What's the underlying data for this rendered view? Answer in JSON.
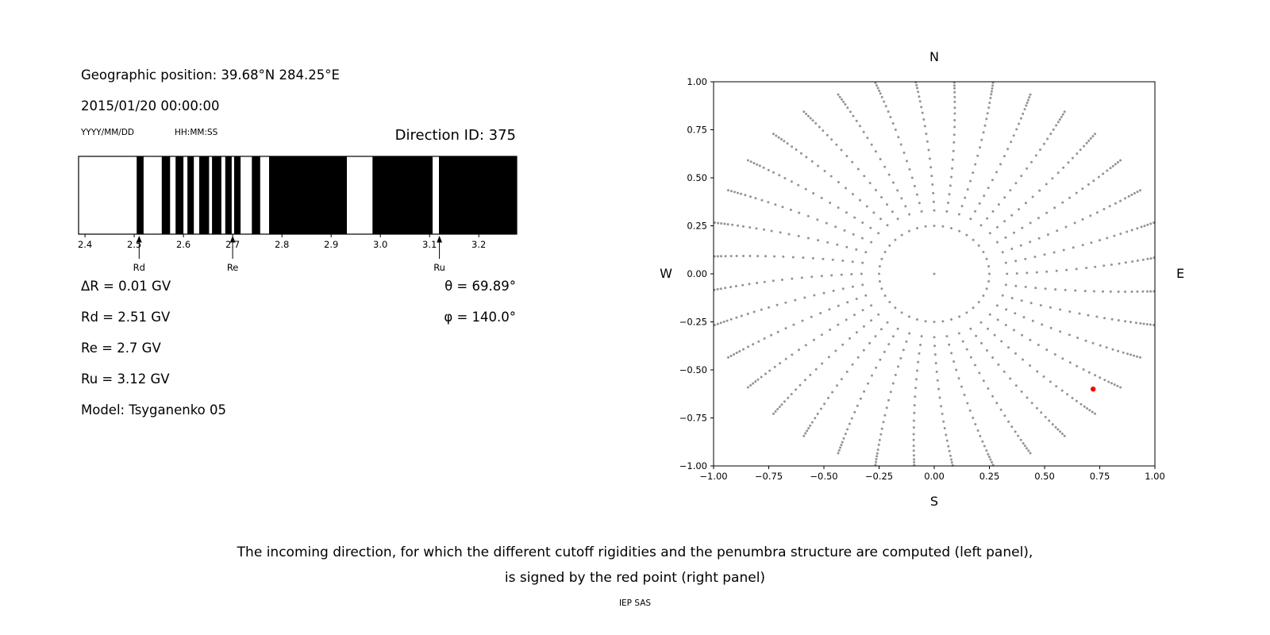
{
  "page": {
    "background": "#ffffff",
    "caption_line1": "The incoming direction, for which the different cutoff rigidities and the penumbra structure are computed (left panel),",
    "caption_line2": "is signed by the red point (right panel)",
    "credit": "IEP SAS"
  },
  "left_panel": {
    "geo_position": "Geographic position: 39.68°N 284.25°E",
    "datetime": "2015/01/20 00:00:00",
    "date_format_label": "YYYY/MM/DD",
    "time_format_label": "HH:MM:SS",
    "direction_id": "Direction ID: 375",
    "values_left": [
      "ΔR = 0.01 GV",
      "Rd = 2.51 GV",
      "Re = 2.7 GV",
      "Ru = 3.12 GV",
      "Model: Tsyganenko 05"
    ],
    "values_right": [
      "θ = 69.89°",
      "φ = 140.0°"
    ]
  },
  "chart_data": [
    {
      "id": "penumbra",
      "type": "bar",
      "description": "Penumbra structure: alternating allowed (white) and forbidden (black) rigidity bands",
      "x_range": [
        2.387,
        3.277
      ],
      "x_ticks": [
        2.4,
        2.5,
        2.6,
        2.7,
        2.8,
        2.9,
        3.0,
        3.1,
        3.2
      ],
      "x_tick_labels": [
        "2.4",
        "2.5",
        "2.6",
        "2.7",
        "2.8",
        "2.9",
        "3.0",
        "3.1",
        "3.2"
      ],
      "black_bands": [
        [
          2.505,
          2.519
        ],
        [
          2.556,
          2.573
        ],
        [
          2.584,
          2.6
        ],
        [
          2.608,
          2.621
        ],
        [
          2.632,
          2.652
        ],
        [
          2.658,
          2.677
        ],
        [
          2.685,
          2.698
        ],
        [
          2.703,
          2.716
        ],
        [
          2.739,
          2.756
        ],
        [
          2.774,
          2.932
        ],
        [
          2.984,
          3.106
        ],
        [
          3.119,
          3.277
        ]
      ],
      "markers": [
        {
          "label": "Rd",
          "x": 2.51
        },
        {
          "label": "Re",
          "x": 2.7
        },
        {
          "label": "Ru",
          "x": 3.12
        }
      ],
      "band_color": "#000000",
      "background_color": "#ffffff"
    },
    {
      "id": "directions",
      "type": "scatter",
      "description": "Grid of incoming directions shown as gray dots (radial spokes plus inner ring); the red dot marks the computed direction",
      "xlim": [
        -1.0,
        1.0
      ],
      "ylim": [
        -1.0,
        1.0
      ],
      "x_ticks": [
        -1.0,
        -0.75,
        -0.5,
        -0.25,
        0.0,
        0.25,
        0.5,
        0.75,
        1.0
      ],
      "x_tick_labels": [
        "−1.00",
        "−0.75",
        "−0.50",
        "−0.25",
        "0.00",
        "0.25",
        "0.50",
        "0.75",
        "1.00"
      ],
      "y_ticks": [
        1.0,
        0.75,
        0.5,
        0.25,
        0.0,
        -0.25,
        -0.5,
        -0.75,
        -1.0
      ],
      "y_tick_labels": [
        "1.00",
        "0.75",
        "0.50",
        "0.25",
        "0.00",
        "−0.25",
        "−0.50",
        "−0.75",
        "−1.00"
      ],
      "compass_labels": {
        "top": "N",
        "bottom": "S",
        "left": "W",
        "right": "E"
      },
      "dot_color": "#949494",
      "red_point": {
        "x": 0.72,
        "y": -0.6,
        "color": "#ff0000"
      },
      "pattern": {
        "center_dot": true,
        "inner_circle": {
          "radius": 0.25,
          "n_dots": 40
        },
        "spokes": {
          "count": 36,
          "start_deg": 0,
          "step_deg": 10,
          "curvature_deg": 5,
          "radii": [
            0.33,
            0.375,
            0.42,
            0.465,
            0.51,
            0.555,
            0.6,
            0.645,
            0.69,
            0.73,
            0.77,
            0.805,
            0.84,
            0.87,
            0.9,
            0.925,
            0.95,
            0.97,
            0.985,
            1.0,
            1.015,
            1.03
          ]
        }
      }
    }
  ]
}
